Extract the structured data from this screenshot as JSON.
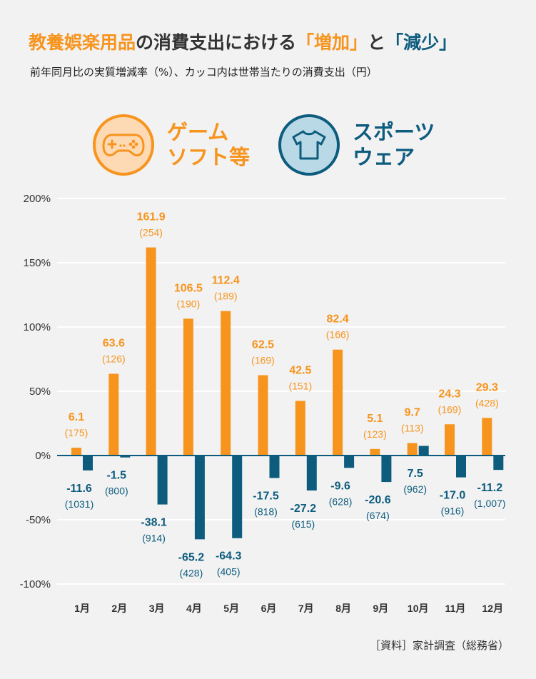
{
  "title": {
    "part1": "教養娯楽用品",
    "part2": "の消費支出における",
    "part3": "「増加」",
    "part4": "と",
    "part5": "「減少」"
  },
  "subtitle": "前年同月比の実質増減率（%）、カッコ内は世帯当たりの消費支出（円）",
  "legend": {
    "game": {
      "label": "ゲーム\nソフト等",
      "icon": "gamepad-icon",
      "color": "#f7941d"
    },
    "sports": {
      "label": "スポーツ\nウェア",
      "icon": "tshirt-icon",
      "color": "#0d5c7d"
    }
  },
  "source": "［資料］家計調査（総務省）",
  "chart_data": {
    "type": "bar",
    "categories": [
      "1月",
      "2月",
      "3月",
      "4月",
      "5月",
      "6月",
      "7月",
      "8月",
      "9月",
      "10月",
      "11月",
      "12月"
    ],
    "series": [
      {
        "name": "ゲームソフト等",
        "color": "#f7941d",
        "values": [
          6.1,
          63.6,
          161.9,
          106.5,
          112.4,
          62.5,
          42.5,
          82.4,
          5.1,
          9.7,
          24.3,
          29.3
        ],
        "labels": [
          "6.1",
          "63.6",
          "161.9",
          "106.5",
          "112.4",
          "62.5",
          "42.5",
          "82.4",
          "5.1",
          "9.7",
          "24.3",
          "29.3"
        ],
        "spending": [
          "(175)",
          "(126)",
          "(254)",
          "(190)",
          "(189)",
          "(169)",
          "(151)",
          "(166)",
          "(123)",
          "(113)",
          "(169)",
          "(428)"
        ]
      },
      {
        "name": "スポーツウェア",
        "color": "#0d5c7d",
        "values": [
          -11.6,
          -1.5,
          -38.1,
          -65.2,
          -64.3,
          -17.5,
          -27.2,
          -9.6,
          -20.6,
          7.5,
          -17.0,
          -11.2
        ],
        "labels": [
          "-11.6",
          "-1.5",
          "-38.1",
          "-65.2",
          "-64.3",
          "-17.5",
          "-27.2",
          "-9.6",
          "-20.6",
          "7.5",
          "-17.0",
          "-11.2"
        ],
        "spending": [
          "(1031)",
          "(800)",
          "(914)",
          "(428)",
          "(405)",
          "(818)",
          "(615)",
          "(628)",
          "(674)",
          "(962)",
          "(916)",
          "(1,007)"
        ]
      }
    ],
    "yticks": [
      200,
      150,
      100,
      50,
      0,
      -50,
      -100
    ],
    "ytick_labels": [
      "200%",
      "150%",
      "100%",
      "50%",
      "0%",
      "-50%",
      "-100%"
    ],
    "ylim": [
      -100,
      200
    ],
    "grid": true,
    "title": "",
    "xlabel": "",
    "ylabel": ""
  }
}
